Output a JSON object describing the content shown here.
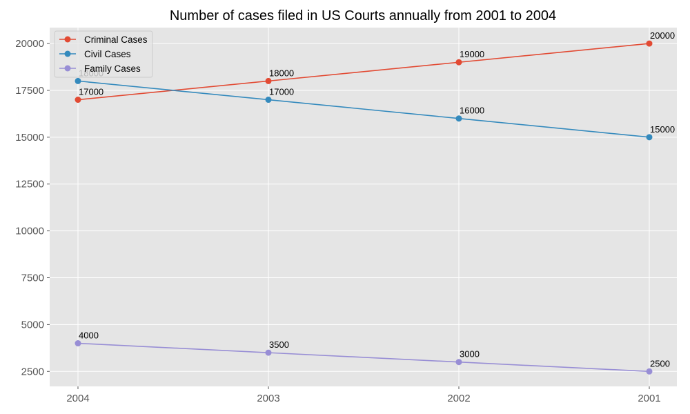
{
  "chart_data": {
    "type": "line",
    "title": "Number of cases filed in US Courts annually from 2001 to 2004",
    "xlabel": "",
    "ylabel": "",
    "categories": [
      "2004",
      "2003",
      "2002",
      "2001"
    ],
    "ylim": [
      1700,
      20850
    ],
    "yticks": [
      2500,
      5000,
      7500,
      10000,
      12500,
      15000,
      17500,
      20000
    ],
    "grid": true,
    "legend_position": "top-left",
    "series": [
      {
        "name": "Criminal Cases",
        "color": "#E24A33",
        "values": [
          17000,
          18000,
          19000,
          20000
        ]
      },
      {
        "name": "Civil Cases",
        "color": "#348ABD",
        "values": [
          18000,
          17000,
          16000,
          15000
        ]
      },
      {
        "name": "Family Cases",
        "color": "#988ED5",
        "values": [
          4000,
          3500,
          3000,
          2500
        ]
      }
    ]
  }
}
